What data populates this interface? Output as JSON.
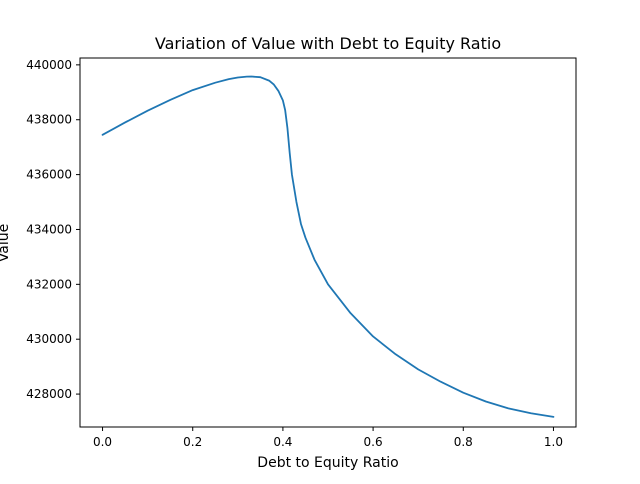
{
  "chart_data": {
    "type": "line",
    "title": "Variation of Value with Debt to Equity Ratio",
    "xlabel": "Debt to Equity Ratio",
    "ylabel": "Value",
    "xlim": [
      -0.05,
      1.05
    ],
    "ylim": [
      426800,
      440250
    ],
    "x_ticks": [
      0.0,
      0.2,
      0.4,
      0.6,
      0.8,
      1.0
    ],
    "x_tick_labels": [
      "0.0",
      "0.2",
      "0.4",
      "0.6",
      "0.8",
      "1.0"
    ],
    "y_ticks": [
      428000,
      430000,
      432000,
      434000,
      436000,
      438000,
      440000
    ],
    "y_tick_labels": [
      "428000",
      "430000",
      "432000",
      "434000",
      "436000",
      "438000",
      "440000"
    ],
    "grid": false,
    "series": [
      {
        "color": "#1f77b4",
        "x": [
          0.0,
          0.05,
          0.1,
          0.15,
          0.2,
          0.25,
          0.28,
          0.3,
          0.32,
          0.33,
          0.35,
          0.37,
          0.38,
          0.39,
          0.4,
          0.405,
          0.41,
          0.415,
          0.42,
          0.43,
          0.44,
          0.45,
          0.47,
          0.5,
          0.55,
          0.6,
          0.65,
          0.7,
          0.75,
          0.8,
          0.85,
          0.9,
          0.95,
          1.0
        ],
        "y": [
          437450,
          437900,
          438330,
          438720,
          439080,
          439350,
          439480,
          439540,
          439570,
          439575,
          439550,
          439420,
          439280,
          439050,
          438700,
          438350,
          437700,
          436800,
          436000,
          435000,
          434200,
          433700,
          432900,
          432000,
          430950,
          430100,
          429450,
          428900,
          428450,
          428050,
          427730,
          427480,
          427300,
          427170
        ]
      }
    ]
  }
}
